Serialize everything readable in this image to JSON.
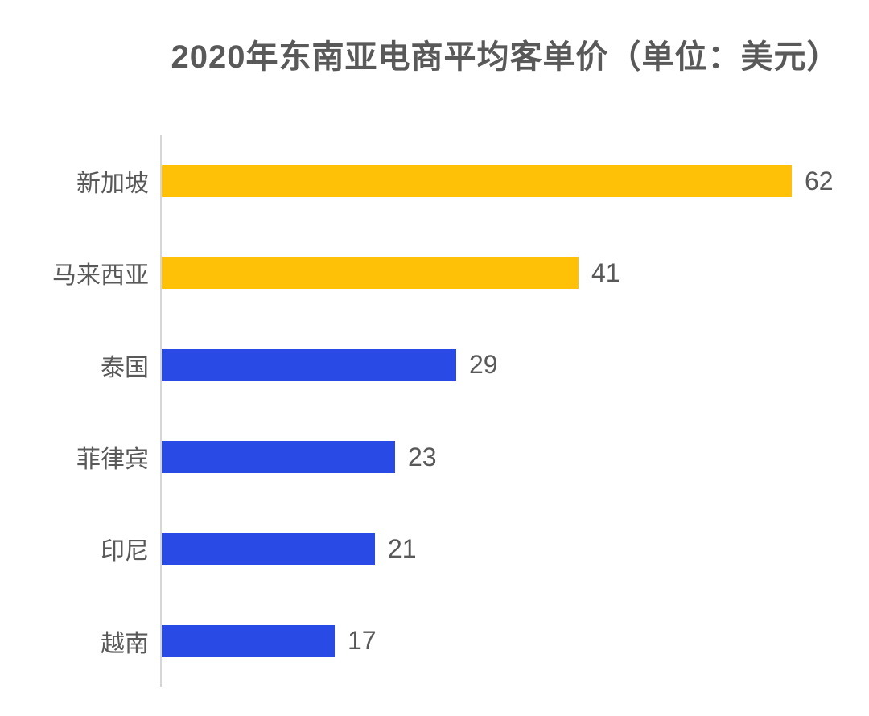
{
  "title": "2020年东南亚电商平均客单价（单位：美元）",
  "colors": {
    "highlight_bar": "#FFC107",
    "default_bar": "#2A4AE5",
    "text": "#595959",
    "axis_line": "#D6D6D6",
    "background": "#FFFFFF"
  },
  "chart_data": {
    "type": "bar",
    "orientation": "horizontal",
    "title": "2020年东南亚电商平均客单价（单位：美元）",
    "categories": [
      "新加坡",
      "马来西亚",
      "泰国",
      "菲律宾",
      "印尼",
      "越南"
    ],
    "values": [
      62,
      41,
      29,
      23,
      21,
      17
    ],
    "data_labels": [
      "62",
      "41",
      "29",
      "23",
      "21",
      "17"
    ],
    "bar_colors": [
      "#FFC107",
      "#FFC107",
      "#2A4AE5",
      "#2A4AE5",
      "#2A4AE5",
      "#2A4AE5"
    ],
    "xlabel": "",
    "ylabel": "",
    "xlim": [
      0,
      69
    ],
    "grid": false,
    "legend": false,
    "data_labels_shown": true
  }
}
